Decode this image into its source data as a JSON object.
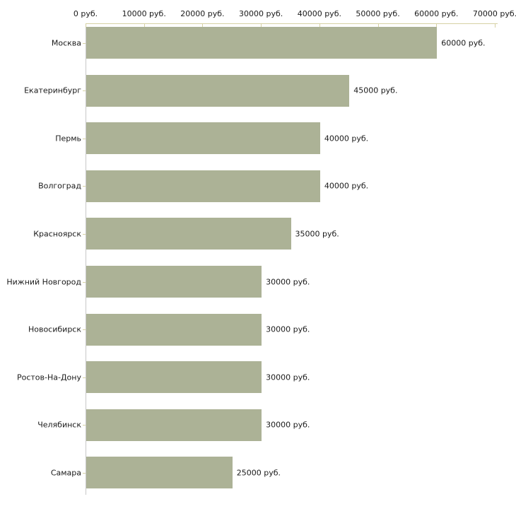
{
  "chart_data": {
    "type": "bar",
    "orientation": "horizontal",
    "title": "",
    "xlabel": "",
    "ylabel": "",
    "categories": [
      "Москва",
      "Екатеринбург",
      "Пермь",
      "Волгоград",
      "Красноярск",
      "Нижний Новгород",
      "Новосибирск",
      "Ростов-На-Дону",
      "Челябинск",
      "Самара"
    ],
    "values": [
      60000,
      45000,
      40000,
      40000,
      35000,
      30000,
      30000,
      30000,
      30000,
      25000
    ],
    "value_labels": [
      "60000 руб.",
      "45000 руб.",
      "40000 руб.",
      "40000 руб.",
      "35000 руб.",
      "30000 руб.",
      "30000 руб.",
      "30000 руб.",
      "30000 руб.",
      "25000 руб."
    ],
    "x_axis": {
      "position": "top",
      "min": 0,
      "max": 70000,
      "tick_step": 10000,
      "tick_values": [
        0,
        10000,
        20000,
        30000,
        40000,
        50000,
        60000,
        70000
      ],
      "tick_labels": [
        "0 руб.",
        "10000 руб.",
        "20000 руб.",
        "30000 руб.",
        "40000 руб.",
        "50000 руб.",
        "60000 руб.",
        "70000 руб."
      ]
    },
    "grid": false,
    "legend": false,
    "colors": {
      "bar": "#acb296",
      "horizontal_axis": "#d6d1a4",
      "vertical_axis": "#c8c8c8",
      "category_tick": "#d6d1a4",
      "text": "#1a1a1a",
      "background": "#ffffff"
    }
  }
}
